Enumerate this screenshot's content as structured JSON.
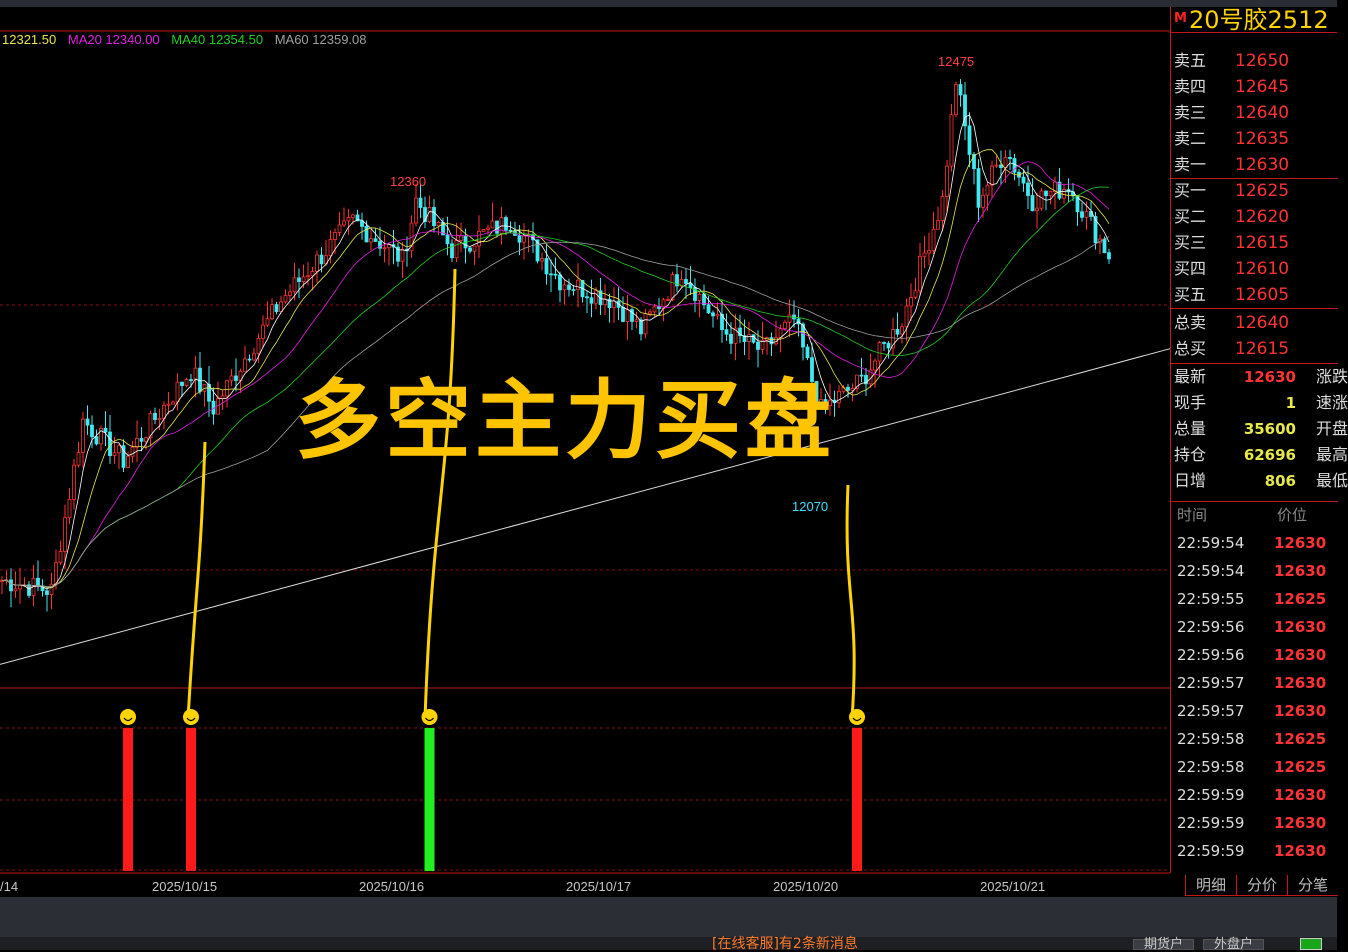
{
  "ma_legend": [
    {
      "label": "12321.50",
      "color": "#e8e84a"
    },
    {
      "label": "MA20 12340.00",
      "color": "#e020e0"
    },
    {
      "label": "MA40 12354.50",
      "color": "#20d020"
    },
    {
      "label": "MA60 12359.08",
      "color": "#a0a0a0"
    }
  ],
  "overlay_text": "多空主力买盘",
  "chart_labels": {
    "high": "12475",
    "mid_high": "12360",
    "low": "12070"
  },
  "x_dates": [
    "/14",
    "2025/10/15",
    "2025/10/16",
    "2025/10/17",
    "2025/10/20",
    "2025/10/21"
  ],
  "chart_data": {
    "type": "candlestick",
    "price_range": [
      11940,
      12500
    ],
    "price_path_approx": [
      [
        0,
        11982
      ],
      [
        11,
        11972
      ],
      [
        18,
        12138
      ],
      [
        27,
        12099
      ],
      [
        42,
        12187
      ],
      [
        47,
        12150
      ],
      [
        62,
        12255
      ],
      [
        78,
        12333
      ],
      [
        89,
        12295
      ],
      [
        92,
        12353
      ],
      [
        100,
        12305
      ],
      [
        113,
        12333
      ],
      [
        124,
        12275
      ],
      [
        136,
        12255
      ],
      [
        142,
        12226
      ],
      [
        151,
        12285
      ],
      [
        160,
        12226
      ],
      [
        169,
        12206
      ],
      [
        176,
        12236
      ],
      [
        182,
        12148
      ],
      [
        191,
        12177
      ],
      [
        200,
        12236
      ],
      [
        209,
        12353
      ],
      [
        212,
        12470
      ],
      [
        217,
        12353
      ],
      [
        223,
        12402
      ],
      [
        229,
        12353
      ],
      [
        237,
        12367
      ],
      [
        246,
        12299
      ]
    ],
    "trendline": [
      [
        0,
        11900
      ],
      [
        260,
        12208
      ]
    ],
    "signals": [
      {
        "bar": 28,
        "color": "#ff1a1a"
      },
      {
        "bar": 42,
        "color": "#ff1a1a"
      },
      {
        "bar": 95,
        "color": "#22ee22"
      },
      {
        "bar": 190,
        "color": "#ff1a1a"
      }
    ]
  },
  "panel": {
    "marker": "M",
    "title": "20号胶2512",
    "asks": [
      {
        "label": "卖五",
        "price": "12650"
      },
      {
        "label": "卖四",
        "price": "12645"
      },
      {
        "label": "卖三",
        "price": "12640"
      },
      {
        "label": "卖二",
        "price": "12635"
      },
      {
        "label": "卖一",
        "price": "12630"
      }
    ],
    "bids": [
      {
        "label": "买一",
        "price": "12625"
      },
      {
        "label": "买二",
        "price": "12620"
      },
      {
        "label": "买三",
        "price": "12615"
      },
      {
        "label": "买四",
        "price": "12610"
      },
      {
        "label": "买五",
        "price": "12605"
      }
    ],
    "totals": [
      {
        "label": "总卖",
        "price": "12640"
      },
      {
        "label": "总买",
        "price": "12615"
      }
    ],
    "stats": [
      {
        "label": "最新",
        "value": "12630",
        "color": "#ff3333",
        "other": "涨跌"
      },
      {
        "label": "现手",
        "value": "1",
        "color": "#e8e84a",
        "other": "速涨"
      },
      {
        "label": "总量",
        "value": "35600",
        "color": "#e8e84a",
        "other": "开盘"
      },
      {
        "label": "持仓",
        "value": "62696",
        "color": "#e8e84a",
        "other": "最高"
      },
      {
        "label": "日增",
        "value": "806",
        "color": "#e8e84a",
        "other": "最低"
      }
    ],
    "ticks_header": {
      "time": "时间",
      "price": "价位"
    },
    "ticks": [
      {
        "time": "22:59:54",
        "price": "12630",
        "color": "#ff3333"
      },
      {
        "time": "22:59:54",
        "price": "12630",
        "color": "#ff3333"
      },
      {
        "time": "22:59:55",
        "price": "12625",
        "color": "#ff3333"
      },
      {
        "time": "22:59:56",
        "price": "12630",
        "color": "#ff3333"
      },
      {
        "time": "22:59:56",
        "price": "12630",
        "color": "#ff3333"
      },
      {
        "time": "22:59:57",
        "price": "12630",
        "color": "#ff3333"
      },
      {
        "time": "22:59:57",
        "price": "12630",
        "color": "#ff3333"
      },
      {
        "time": "22:59:58",
        "price": "12625",
        "color": "#ff3333"
      },
      {
        "time": "22:59:58",
        "price": "12625",
        "color": "#ff3333"
      },
      {
        "time": "22:59:59",
        "price": "12630",
        "color": "#ff3333"
      },
      {
        "time": "22:59:59",
        "price": "12630",
        "color": "#ff3333"
      },
      {
        "time": "22:59:59",
        "price": "12630",
        "color": "#ff3333"
      }
    ],
    "tabs": [
      "明细",
      "分价",
      "分笔"
    ]
  },
  "status": {
    "message": "[在线客服]有2条新消息",
    "buttons": [
      "期货户",
      "外盘户"
    ]
  }
}
